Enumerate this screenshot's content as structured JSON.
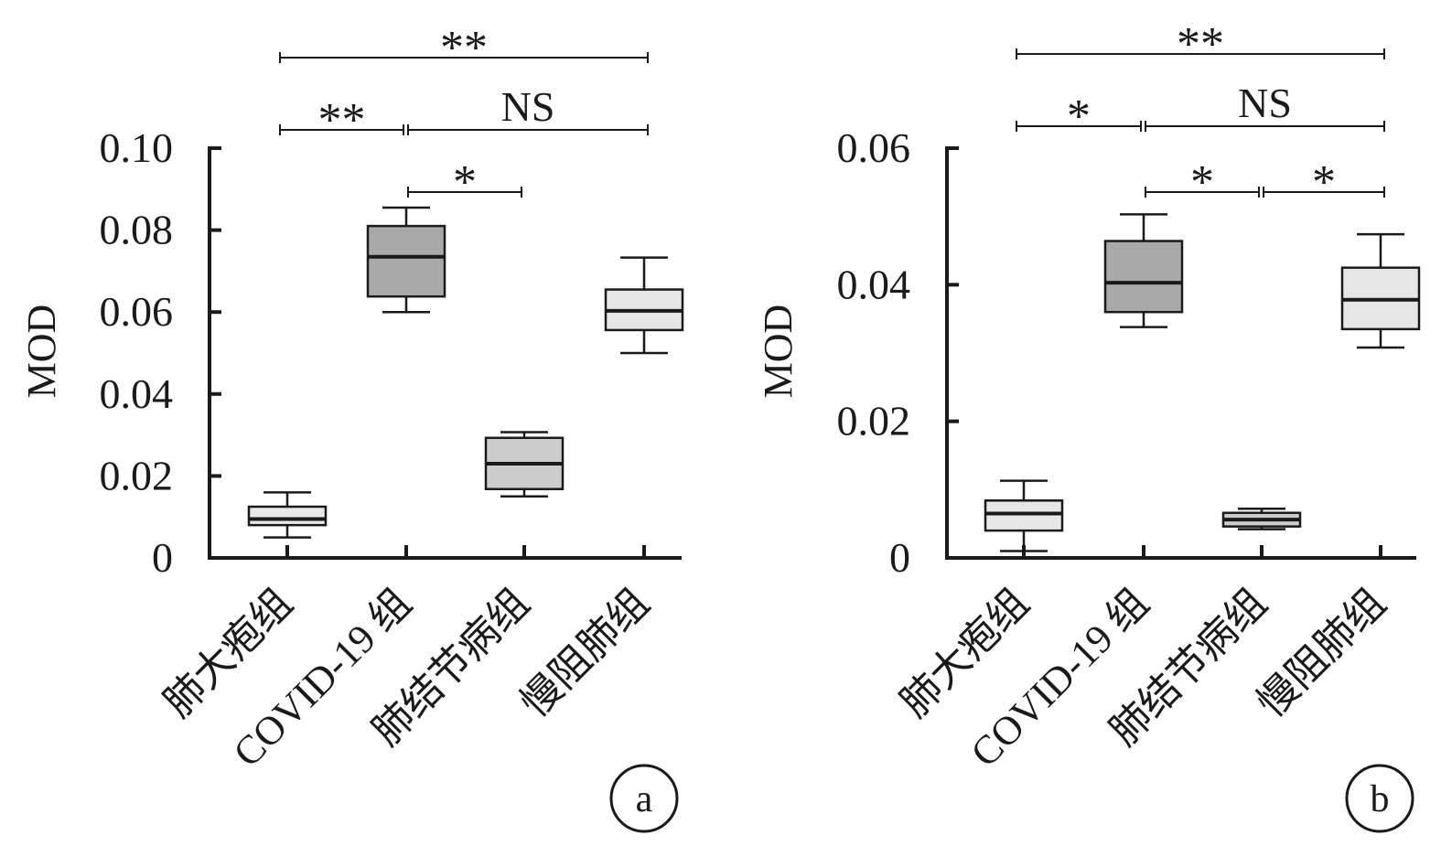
{
  "chart_data": [
    {
      "type": "box",
      "panel_label": "a",
      "ylabel": "MOD",
      "ylim": [
        0,
        0.1
      ],
      "yticks": [
        0,
        0.02,
        0.04,
        0.06,
        0.08,
        0.1
      ],
      "ytick_labels": [
        "0",
        "0.02",
        "0.04",
        "0.06",
        "0.08",
        "0.10"
      ],
      "categories": [
        "肺大疱组",
        "COVID-19 组",
        "肺结节病组",
        "慢阻肺组"
      ],
      "boxes": [
        {
          "category": "肺大疱组",
          "whisker_low": 0.005,
          "q1": 0.008,
          "median": 0.0095,
          "q3": 0.0125,
          "whisker_high": 0.016,
          "fill": "#e8e8e8"
        },
        {
          "category": "COVID-19 组",
          "whisker_low": 0.06,
          "q1": 0.0638,
          "median": 0.0735,
          "q3": 0.081,
          "whisker_high": 0.0855,
          "fill": "#a9a9a9"
        },
        {
          "category": "肺结节病组",
          "whisker_low": 0.015,
          "q1": 0.0168,
          "median": 0.023,
          "q3": 0.0293,
          "whisker_high": 0.0307,
          "fill": "#cccccc"
        },
        {
          "category": "慢阻肺组",
          "whisker_low": 0.05,
          "q1": 0.0556,
          "median": 0.0603,
          "q3": 0.0655,
          "whisker_high": 0.0733,
          "fill": "#e6e6e6"
        }
      ],
      "annotations": [
        {
          "from": 0,
          "to": 3,
          "label": "**",
          "level": 3
        },
        {
          "from": 0,
          "to": 1,
          "label": "**",
          "level": 2
        },
        {
          "from": 1,
          "to": 3,
          "label": "NS",
          "level": 2
        },
        {
          "from": 1,
          "to": 2,
          "label": "*",
          "level": 1
        }
      ]
    },
    {
      "type": "box",
      "panel_label": "b",
      "ylabel": "MOD",
      "ylim": [
        0,
        0.06
      ],
      "yticks": [
        0,
        0.02,
        0.04,
        0.06
      ],
      "ytick_labels": [
        "0",
        "0.02",
        "0.04",
        "0.06"
      ],
      "categories": [
        "肺大疱组",
        "COVID-19 组",
        "肺结节病组",
        "慢阻肺组"
      ],
      "boxes": [
        {
          "category": "肺大疱组",
          "whisker_low": 0.001,
          "q1": 0.004,
          "median": 0.0065,
          "q3": 0.0084,
          "whisker_high": 0.0113,
          "fill": "#e6e6e6"
        },
        {
          "category": "COVID-19 组",
          "whisker_low": 0.0338,
          "q1": 0.036,
          "median": 0.0403,
          "q3": 0.0464,
          "whisker_high": 0.0503,
          "fill": "#a9a9a9"
        },
        {
          "category": "肺结节病组",
          "whisker_low": 0.0042,
          "q1": 0.0046,
          "median": 0.0056,
          "q3": 0.0066,
          "whisker_high": 0.0072,
          "fill": "#cccccc"
        },
        {
          "category": "慢阻肺组",
          "whisker_low": 0.0308,
          "q1": 0.0335,
          "median": 0.0378,
          "q3": 0.0425,
          "whisker_high": 0.0474,
          "fill": "#e6e6e6"
        }
      ],
      "annotations": [
        {
          "from": 0,
          "to": 3,
          "label": "**",
          "level": 3
        },
        {
          "from": 0,
          "to": 1,
          "label": "*",
          "level": 2
        },
        {
          "from": 1,
          "to": 3,
          "label": "NS",
          "level": 2
        },
        {
          "from": 1,
          "to": 2,
          "label": "*",
          "level": 1
        },
        {
          "from": 2,
          "to": 3,
          "label": "*",
          "level": 1
        }
      ]
    }
  ]
}
